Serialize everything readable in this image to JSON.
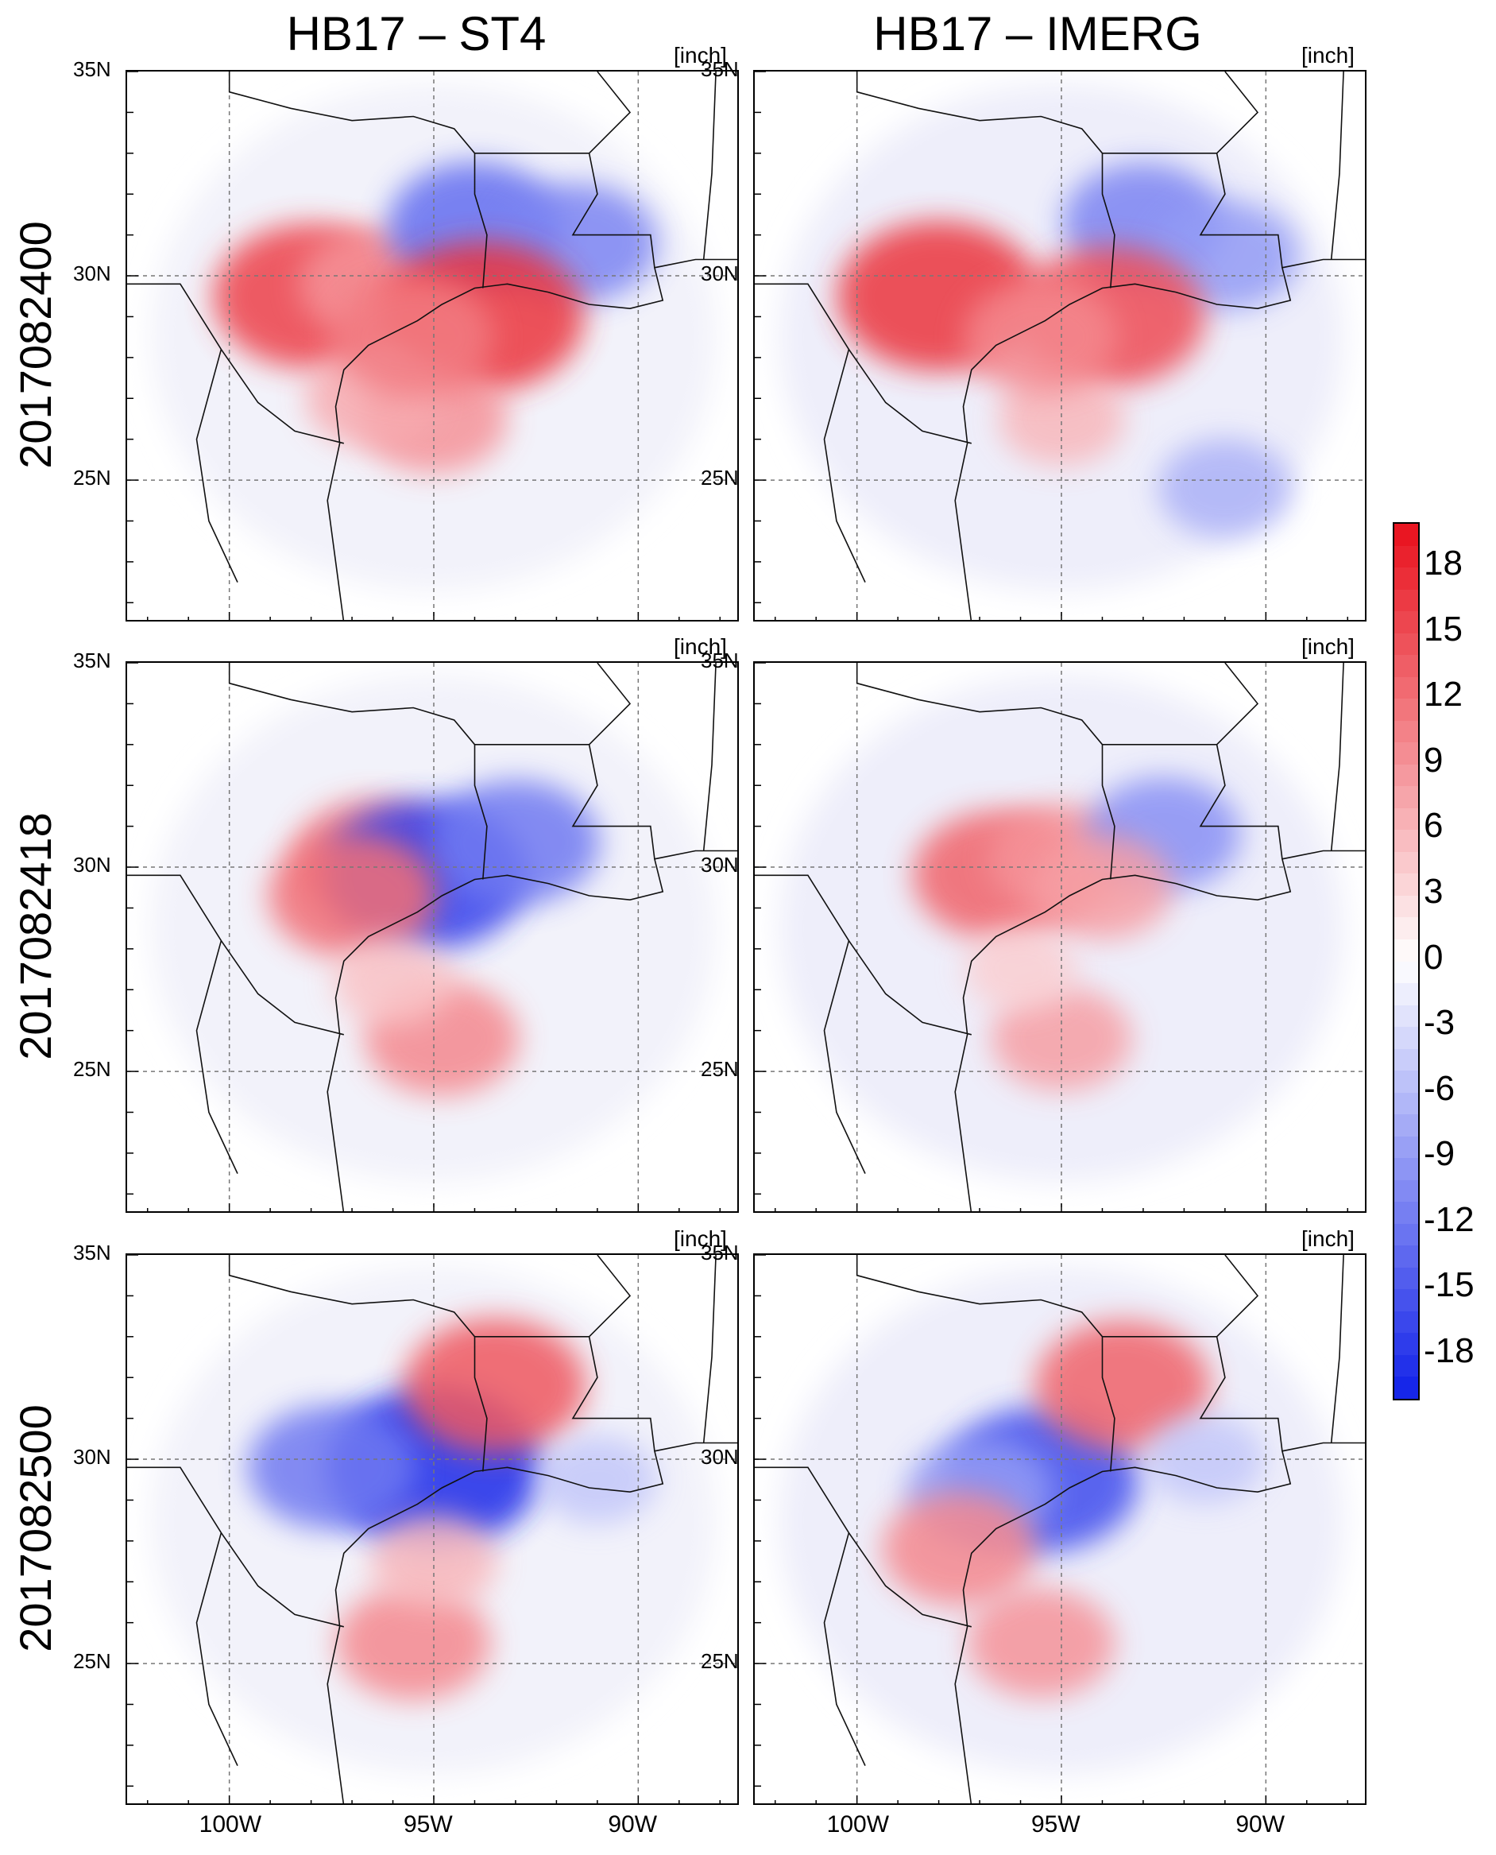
{
  "chart_data": {
    "type": "heatmap",
    "description_units": "inch",
    "columns": [
      "HB17 – ST4",
      "HB17 – IMERG"
    ],
    "rows": [
      "2017082400",
      "2017082418",
      "2017082500"
    ],
    "unit_label": "[inch]",
    "lat_ticks": [
      "35N",
      "30N",
      "25N"
    ],
    "lon_ticks": [
      "100W",
      "95W",
      "90W"
    ],
    "x_range": [
      -102.5,
      -87.5
    ],
    "y_range": [
      21.5,
      35
    ],
    "colorbar": {
      "min": -20,
      "max": 20,
      "step": 1,
      "tick_labels": [
        "18",
        "15",
        "12",
        "9",
        "6",
        "3",
        "0",
        "-3",
        "-6",
        "-9",
        "-12",
        "-15",
        "-18"
      ],
      "tick_values": [
        18,
        15,
        12,
        9,
        6,
        3,
        0,
        -3,
        -6,
        -9,
        -12,
        -15,
        -18
      ],
      "positive_color": "#e8101c",
      "negative_color": "#1020e8"
    },
    "panels": [
      {
        "row": 0,
        "col": 0,
        "anomalies": [
          {
            "lon": -98.0,
            "lat": 29.5,
            "v": 16
          },
          {
            "lon": -96.5,
            "lat": 29.8,
            "v": 9
          },
          {
            "lon": -94.0,
            "lat": 31.2,
            "v": -13
          },
          {
            "lon": -91.5,
            "lat": 30.8,
            "v": -11
          },
          {
            "lon": -93.8,
            "lat": 29.0,
            "v": 17
          },
          {
            "lon": -95.0,
            "lat": 26.5,
            "v": 9
          },
          {
            "lon": -96.5,
            "lat": 27.0,
            "v": 7
          },
          {
            "lon": -95.5,
            "lat": 28.5,
            "v": 11
          }
        ]
      },
      {
        "row": 0,
        "col": 1,
        "anomalies": [
          {
            "lon": -98.0,
            "lat": 29.5,
            "v": 17
          },
          {
            "lon": -93.0,
            "lat": 31.3,
            "v": -11
          },
          {
            "lon": -91.0,
            "lat": 30.5,
            "v": -9
          },
          {
            "lon": -93.8,
            "lat": 29.0,
            "v": 15
          },
          {
            "lon": -95.0,
            "lat": 26.5,
            "v": 6
          },
          {
            "lon": -91.0,
            "lat": 24.8,
            "v": -7
          },
          {
            "lon": -95.5,
            "lat": 28.5,
            "v": 10
          }
        ]
      },
      {
        "row": 1,
        "col": 0,
        "anomalies": [
          {
            "lon": -96.5,
            "lat": 30.2,
            "v": 11
          },
          {
            "lon": -95.2,
            "lat": 29.8,
            "v": -17
          },
          {
            "lon": -93.0,
            "lat": 30.6,
            "v": -12
          },
          {
            "lon": -97.0,
            "lat": 29.3,
            "v": 12
          },
          {
            "lon": -94.8,
            "lat": 25.8,
            "v": 10
          },
          {
            "lon": -96.0,
            "lat": 27.2,
            "v": 5
          }
        ]
      },
      {
        "row": 1,
        "col": 1,
        "anomalies": [
          {
            "lon": -96.5,
            "lat": 29.8,
            "v": 13
          },
          {
            "lon": -95.0,
            "lat": 30.2,
            "v": 9
          },
          {
            "lon": -92.5,
            "lat": 30.8,
            "v": -10
          },
          {
            "lon": -94.0,
            "lat": 29.5,
            "v": 8
          },
          {
            "lon": -95.0,
            "lat": 25.8,
            "v": 8
          },
          {
            "lon": -96.0,
            "lat": 27.5,
            "v": 4
          }
        ]
      },
      {
        "row": 2,
        "col": 0,
        "anomalies": [
          {
            "lon": -95.0,
            "lat": 29.8,
            "v": -19
          },
          {
            "lon": -97.5,
            "lat": 29.8,
            "v": -12
          },
          {
            "lon": -93.5,
            "lat": 31.8,
            "v": 14
          },
          {
            "lon": -95.5,
            "lat": 25.5,
            "v": 10
          },
          {
            "lon": -95.0,
            "lat": 27.5,
            "v": 6
          },
          {
            "lon": -91.0,
            "lat": 29.5,
            "v": -5
          }
        ]
      },
      {
        "row": 2,
        "col": 1,
        "anomalies": [
          {
            "lon": -95.5,
            "lat": 29.5,
            "v": -16
          },
          {
            "lon": -97.0,
            "lat": 29.2,
            "v": -9
          },
          {
            "lon": -93.5,
            "lat": 31.8,
            "v": 13
          },
          {
            "lon": -95.5,
            "lat": 25.5,
            "v": 9
          },
          {
            "lon": -97.5,
            "lat": 27.8,
            "v": 10
          },
          {
            "lon": -91.5,
            "lat": 30.0,
            "v": -5
          }
        ]
      }
    ]
  }
}
